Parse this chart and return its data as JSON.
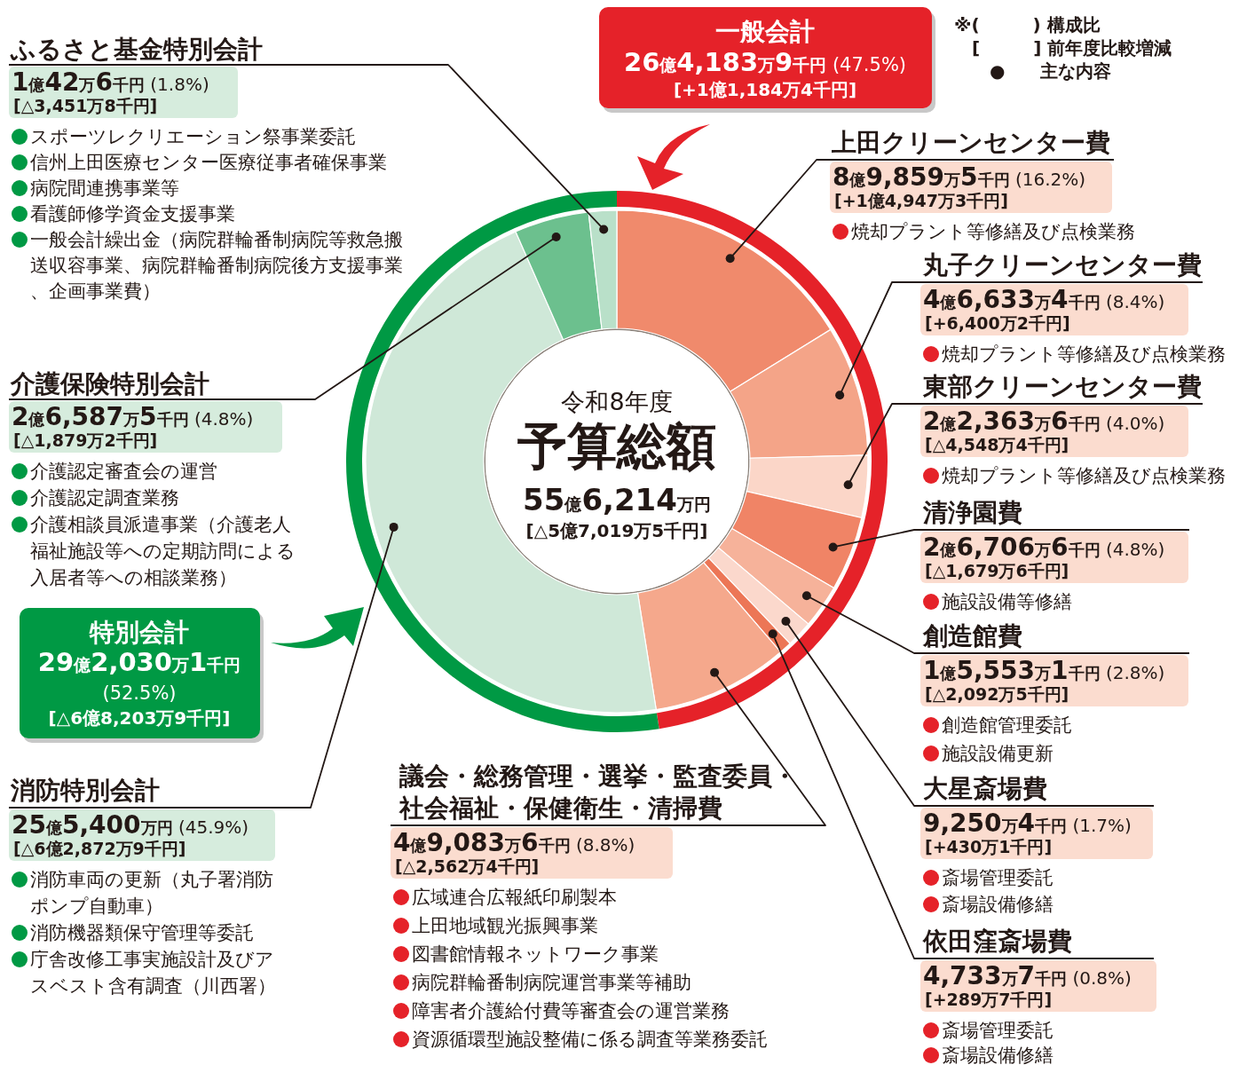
{
  "chart_data": [
    {
      "type": "donut",
      "categories": [
        "一般会計",
        "特別会計"
      ],
      "values": [
        47.5,
        52.5
      ],
      "colors": [
        "#e52229",
        "#009944"
      ],
      "value_labels": [
        "26億4,183万9千円 (47.5%)",
        "29億2,030万1千円 (52.5%)"
      ],
      "annotations": [
        {
          "text": "[+1億1,184万4千円]",
          "x": "一般会計"
        },
        {
          "text": "[△6億8,203万9千円]",
          "x": "特別会計"
        },
        "※(　　　) 構成比",
        "[　　　] 前年度比較増減",
        "●　　主な内容"
      ]
    },
    {
      "type": "donut",
      "title": "令和8年度",
      "subtitle": "予算総額",
      "categories": [
        "上田クリーンセンター費",
        "丸子クリーンセンター費",
        "東部クリーンセンター費",
        "清浄園費",
        "創造館費",
        "大星斎場費",
        "依田窪斎場費",
        "議会・総務管理・選挙・監査委員・社会福祉・保健衛生・清掃費",
        "消防特別会計",
        "介護保険特別会計",
        "ふるさと基金特別会計"
      ],
      "values": [
        16.2,
        8.4,
        4.0,
        4.8,
        2.8,
        1.7,
        0.8,
        8.8,
        45.9,
        4.8,
        1.8
      ],
      "colors": [
        "#f08a6c",
        "#f4a488",
        "#fbd6c8",
        "#f08466",
        "#f6b29a",
        "#fbd8cc",
        "#ec7656",
        "#f5a88c",
        "#cfe8d8",
        "#6cc08e",
        "#b9e0c9"
      ],
      "value_labels": [
        "8億9,859万5千円 (16.2%)",
        "4億6,633万4千円 (8.4%)",
        "2億2,363万6千円 (4.0%)",
        "2億6,706万6千円 (4.8%)",
        "1億5,553万1千円 (2.8%)",
        "9,250万4千円 (1.7%)",
        "4,733万7千円 (0.8%)",
        "4億9,083万6千円 (8.8%)",
        "25億5,400万円 (45.9%)",
        "2億6,587万5千円 (4.8%)",
        "1億42万6千円 (1.8%)"
      ],
      "annotations": [
        "55億6,214万円",
        "[△5億7,019万5千円]",
        {
          "text": "[+1億4,947万3千円]",
          "x": "上田クリーンセンター費"
        },
        {
          "text": "焼却プラント等修繕及び点検業務",
          "x": "上田クリーンセンター費"
        },
        {
          "text": "[+6,400万2千円]",
          "x": "丸子クリーンセンター費"
        },
        {
          "text": "焼却プラント等修繕及び点検業務",
          "x": "丸子クリーンセンター費"
        },
        {
          "text": "[△4,548万4千円]",
          "x": "東部クリーンセンター費"
        },
        {
          "text": "焼却プラント等修繕及び点検業務",
          "x": "東部クリーンセンター費"
        },
        {
          "text": "[△1,679万6千円]",
          "x": "清浄園費"
        },
        {
          "text": "施設設備等修繕",
          "x": "清浄園費"
        },
        {
          "text": "[△2,092万5千円]",
          "x": "創造館費"
        },
        {
          "text": "創造館管理委託",
          "x": "創造館費"
        },
        {
          "text": "施設設備更新",
          "x": "創造館費"
        },
        {
          "text": "[+430万1千円]",
          "x": "大星斎場費"
        },
        {
          "text": "斎場管理委託",
          "x": "大星斎場費"
        },
        {
          "text": "斎場設備修繕",
          "x": "大星斎場費"
        },
        {
          "text": "[+289万7千円]",
          "x": "依田窪斎場費"
        },
        {
          "text": "斎場管理委託",
          "x": "依田窪斎場費"
        },
        {
          "text": "斎場設備修繕",
          "x": "依田窪斎場費"
        },
        {
          "text": "[△2,562万4千円]",
          "x": "議会・総務管理・選挙・監査委員・社会福祉・保健衛生・清掃費"
        },
        {
          "text": "広域連合広報紙印刷製本",
          "x": "議会・総務管理・選挙・監査委員・社会福祉・保健衛生・清掃費"
        },
        {
          "text": "上田地域観光振興事業",
          "x": "議会・総務管理・選挙・監査委員・社会福祉・保健衛生・清掃費"
        },
        {
          "text": "図書館情報ネットワーク事業",
          "x": "議会・総務管理・選挙・監査委員・社会福祉・保健衛生・清掃費"
        },
        {
          "text": "病院群輪番制病院運営事業等補助",
          "x": "議会・総務管理・選挙・監査委員・社会福祉・保健衛生・清掃費"
        },
        {
          "text": "障害者介護給付費等審査会の運営業務",
          "x": "議会・総務管理・選挙・監査委員・社会福祉・保健衛生・清掃費"
        },
        {
          "text": "資源循環型施設整備に係る調査等業務委託",
          "x": "議会・総務管理・選挙・監査委員・社会福祉・保健衛生・清掃費"
        },
        {
          "text": "[△6億2,872万9千円]",
          "x": "消防特別会計"
        },
        {
          "text": "消防車両の更新（丸子署消防ポンプ自動車）",
          "x": "消防特別会計"
        },
        {
          "text": "消防機器類保守管理等委託",
          "x": "消防特別会計"
        },
        {
          "text": "庁舎改修工事実施設計及びアスベスト含有調査（川西署）",
          "x": "消防特別会計"
        },
        {
          "text": "[△1,879万2千円]",
          "x": "介護保険特別会計"
        },
        {
          "text": "介護認定審査会の運営",
          "x": "介護保険特別会計"
        },
        {
          "text": "介護認定調査業務",
          "x": "介護保険特別会計"
        },
        {
          "text": "介護相談員派遣事業（介護老人福祉施設等への定期訪問による入居者等への相談業務）",
          "x": "介護保険特別会計"
        },
        {
          "text": "[△3,451万8千円]",
          "x": "ふるさと基金特別会計"
        },
        {
          "text": "スポーツレクリエーション祭事業委託",
          "x": "ふるさと基金特別会計"
        },
        {
          "text": "信州上田医療センター医療従事者確保事業",
          "x": "ふるさと基金特別会計"
        },
        {
          "text": "病院間連携事業等",
          "x": "ふるさと基金特別会計"
        },
        {
          "text": "看護師修学資金支援事業",
          "x": "ふるさと基金特別会計"
        },
        {
          "text": "一般会計繰出金（病院群輪番制病院等救急搬送収容事業、病院群輪番制病院後方支援事業、企画事業費）",
          "x": "ふるさと基金特別会計"
        }
      ]
    }
  ]
}
